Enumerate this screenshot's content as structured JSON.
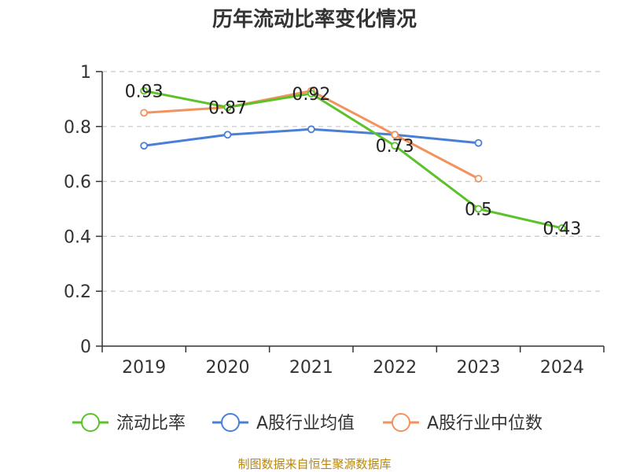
{
  "chart_data": {
    "type": "line",
    "title": "历年流动比率变化情况",
    "categories": [
      "2019",
      "2020",
      "2021",
      "2022",
      "2023",
      "2024"
    ],
    "ylim": [
      0,
      1
    ],
    "yticks": [
      "0",
      "0.2",
      "0.4",
      "0.6",
      "0.8",
      "1"
    ],
    "grid": true,
    "legend_position": "bottom",
    "series": [
      {
        "name": "流动比率",
        "color": "#5cc22a",
        "values": [
          0.93,
          0.87,
          0.92,
          0.73,
          0.5,
          0.43
        ],
        "labels": [
          "0.93",
          "0.87",
          "0.92",
          "0.73",
          "0.5",
          "0.43"
        ]
      },
      {
        "name": "A股行业均值",
        "color": "#4a7fd8",
        "values": [
          0.73,
          0.77,
          0.79,
          0.77,
          0.74,
          null
        ]
      },
      {
        "name": "A股行业中位数",
        "color": "#f4925e",
        "values": [
          0.85,
          0.87,
          0.93,
          0.77,
          0.61,
          null
        ]
      }
    ]
  },
  "source": "制图数据来自恒生聚源数据库"
}
